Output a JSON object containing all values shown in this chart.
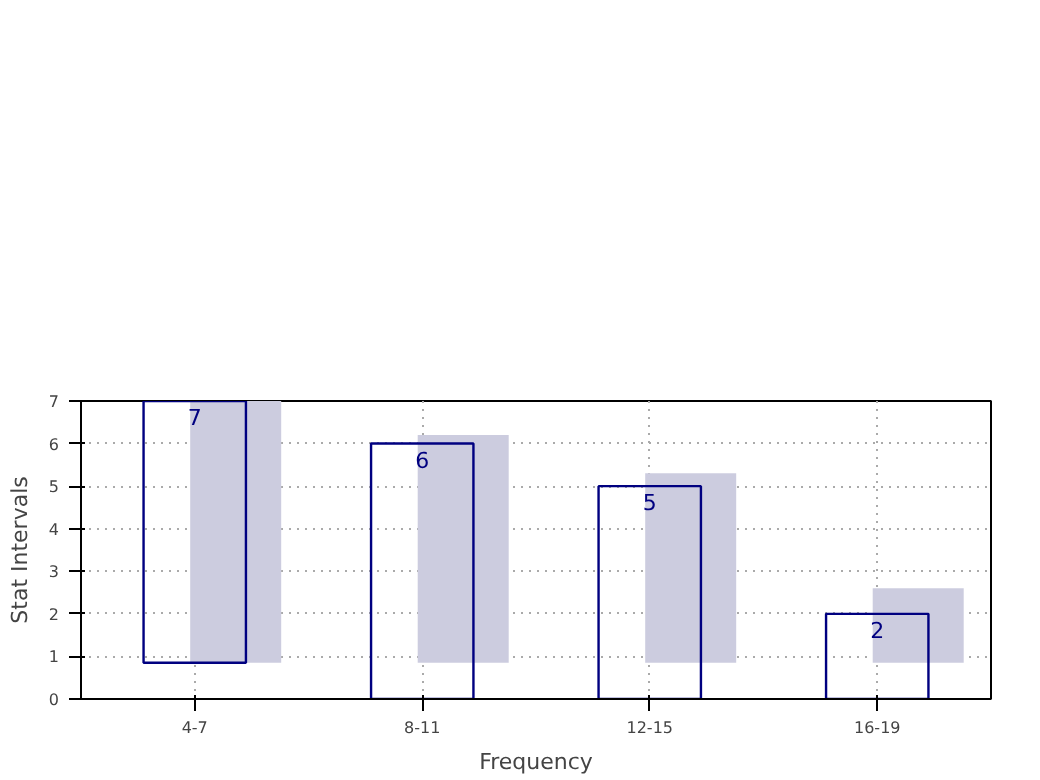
{
  "chart_data": {
    "type": "bar",
    "xlabel": "Frequency",
    "ylabel": "Stat Intervals",
    "categories": [
      "4-7",
      "8-11",
      "12-15",
      "16-19"
    ],
    "series": [
      {
        "color": "#ccccdf",
        "values": [
          6.15,
          5.35,
          4.45,
          1.75
        ],
        "base": [
          0.85,
          0.85,
          0.85,
          0.85
        ]
      },
      {
        "color": "#000080",
        "values": [
          6.15,
          6,
          5,
          2
        ],
        "base": [
          0.85,
          0,
          0,
          0
        ],
        "value_labels": [
          "7",
          "6",
          "5",
          "2"
        ]
      }
    ],
    "ylim": [
      0,
      7
    ],
    "yticks": [
      0,
      1,
      2,
      3,
      4,
      5,
      6,
      7
    ],
    "grid": true,
    "line_style": "dotted"
  }
}
